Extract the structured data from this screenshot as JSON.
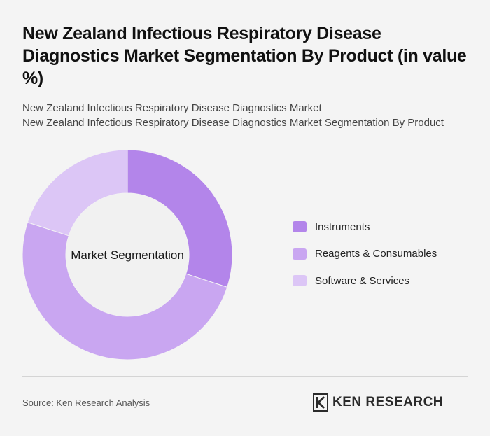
{
  "header": {
    "title": "New Zealand Infectious Respiratory Disease Diagnostics Market Segmentation By Product (in value %)",
    "subtitle_1": "New Zealand Infectious Respiratory Disease Diagnostics Market",
    "subtitle_2": "New Zealand Infectious Respiratory Disease Diagnostics Market Segmentation By Product"
  },
  "chart_data": {
    "type": "pie",
    "variant": "donut",
    "center_label": "Market Segmentation",
    "categories": [
      "Instruments",
      "Reagents & Consumables",
      "Software & Services"
    ],
    "values": [
      30,
      50,
      20
    ],
    "unit": "%",
    "colors": [
      "#b385ea",
      "#c9a6f1",
      "#dcc6f6"
    ],
    "legend_position": "right"
  },
  "footer": {
    "source": "Source: Ken Research Analysis",
    "logo_text": "KEN RESEARCH"
  }
}
